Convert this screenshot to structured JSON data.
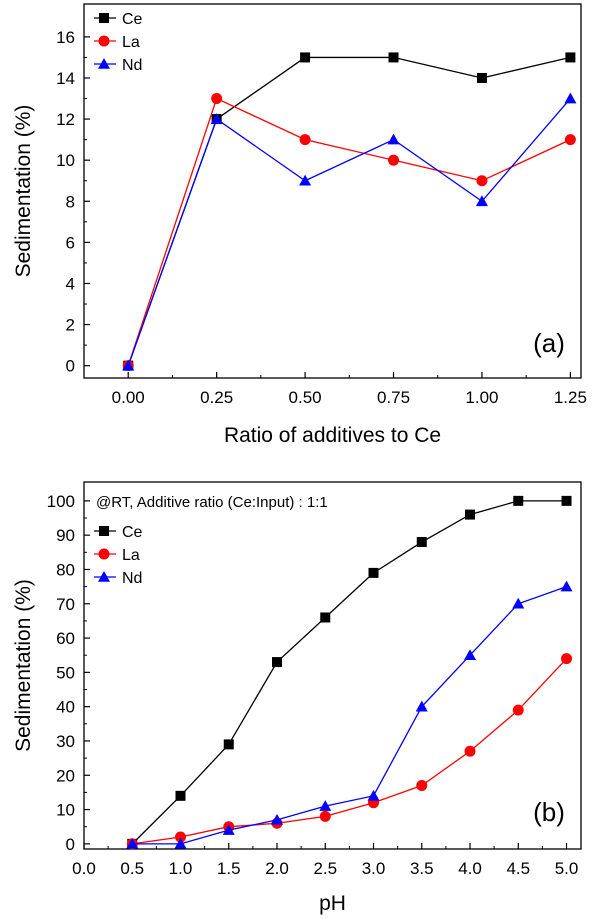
{
  "chart_data": [
    {
      "type": "line",
      "x": [
        0,
        0.25,
        0.5,
        0.75,
        1.0,
        1.25
      ],
      "x_tick_labels": [
        "0.00",
        "0.25",
        "0.50",
        "0.75",
        "1.00",
        "1.25"
      ],
      "y_tick_labels": [
        "0",
        "2",
        "4",
        "6",
        "8",
        "10",
        "12",
        "14",
        "16"
      ],
      "series": [
        {
          "name": "Ce",
          "marker": "square",
          "color": "#000000",
          "values": [
            0,
            12,
            15,
            15,
            14,
            15
          ]
        },
        {
          "name": "La",
          "marker": "circle",
          "color": "#ff0000",
          "values": [
            0,
            13,
            11,
            10,
            9,
            11
          ]
        },
        {
          "name": "Nd",
          "marker": "triangle",
          "color": "#0000ff",
          "values": [
            0,
            12,
            9,
            11,
            8,
            13
          ]
        }
      ],
      "xlabel": "Ratio of additives to Ce",
      "ylabel": "Sedimentation (%)",
      "xlim": [
        -0.125,
        1.28
      ],
      "ylim": [
        -0.6,
        17.6
      ],
      "panel_label": "(a)",
      "annotation": "",
      "legend": "top-left"
    },
    {
      "type": "line",
      "x": [
        0.5,
        1.0,
        1.5,
        2.0,
        2.5,
        3.0,
        3.5,
        4.0,
        4.5,
        5.0
      ],
      "x_tick_labels": [
        "0.0",
        "0.5",
        "1.0",
        "1.5",
        "2.0",
        "2.5",
        "3.0",
        "3.5",
        "4.0",
        "4.5",
        "5.0"
      ],
      "y_tick_labels": [
        "0",
        "10",
        "20",
        "30",
        "40",
        "50",
        "60",
        "70",
        "80",
        "90",
        "100"
      ],
      "series": [
        {
          "name": "Ce",
          "marker": "square",
          "color": "#000000",
          "values": [
            0,
            14,
            29,
            53,
            66,
            79,
            88,
            96,
            100,
            100
          ]
        },
        {
          "name": "La",
          "marker": "circle",
          "color": "#ff0000",
          "values": [
            0,
            2,
            5,
            6,
            8,
            12,
            17,
            27,
            39,
            54
          ]
        },
        {
          "name": "Nd",
          "marker": "triangle",
          "color": "#0000ff",
          "values": [
            0,
            0,
            4,
            7,
            11,
            14,
            40,
            55,
            70,
            75
          ]
        }
      ],
      "xlabel": "pH",
      "ylabel": "Sedimentation (%)",
      "xlim": [
        0.0,
        5.15
      ],
      "ylim": [
        -1.5,
        105.5
      ],
      "panel_label": "(b)",
      "annotation": "@RT, Additive ratio (Ce:Input) : 1:1",
      "legend": "top-left"
    }
  ]
}
